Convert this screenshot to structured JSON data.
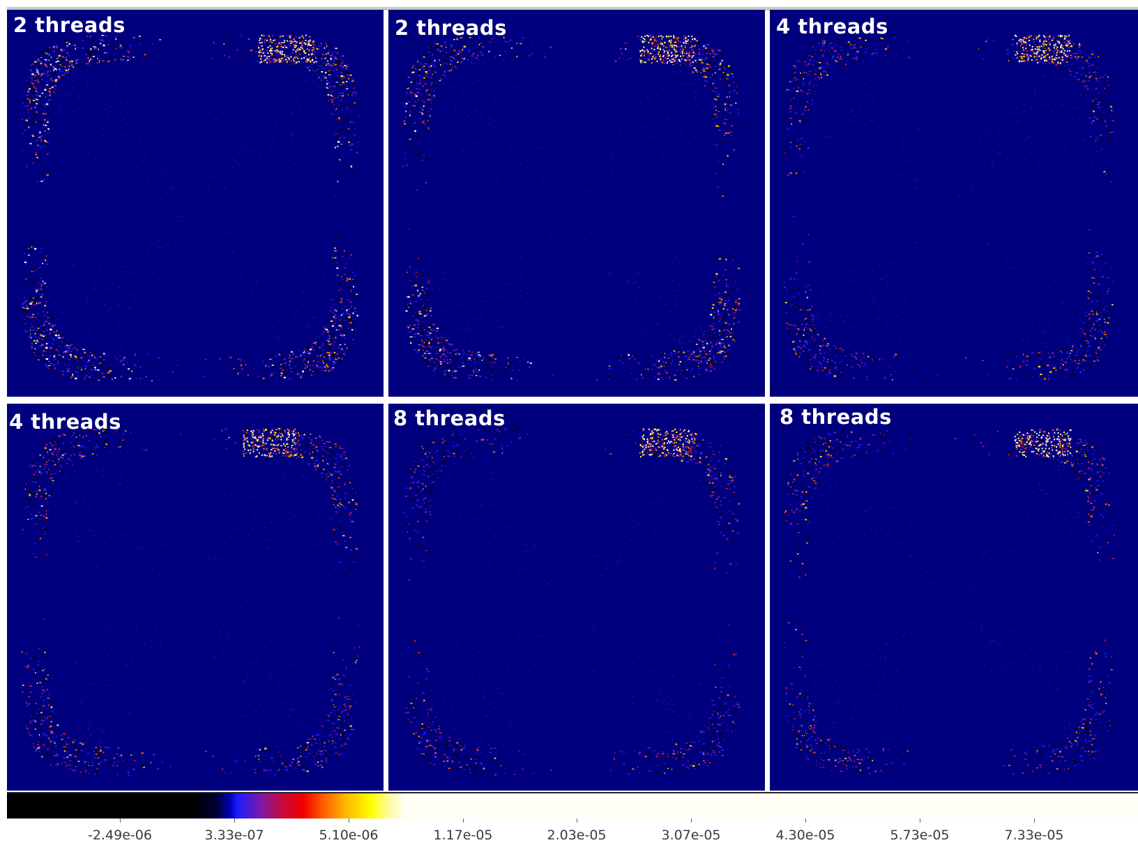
{
  "panels": [
    {
      "title": "2 threads",
      "hot_spot": "top-right",
      "edge_noise": 0.95
    },
    {
      "title": "2 threads",
      "hot_spot": "top-right",
      "edge_noise": 0.8
    },
    {
      "title": "4 threads",
      "hot_spot": "top-right",
      "edge_noise": 0.55
    },
    {
      "title": "4 threads",
      "hot_spot": "top-center",
      "edge_noise": 0.6
    },
    {
      "title": "8 threads",
      "hot_spot": "top-right",
      "edge_noise": 0.4
    },
    {
      "title": "8 threads",
      "hot_spot": "top-right",
      "edge_noise": 0.45
    }
  ],
  "colorbar": {
    "colormap": "black-blue-red-yellow-white",
    "ticks": [
      "-2.49e-06",
      "3.33e-07",
      "5.10e-06",
      "1.17e-05",
      "2.03e-05",
      "3.07e-05",
      "4.30e-05",
      "5.73e-05",
      "7.33e-05"
    ]
  },
  "colors": {
    "background": "#00007f",
    "separator": "#ffffff"
  }
}
